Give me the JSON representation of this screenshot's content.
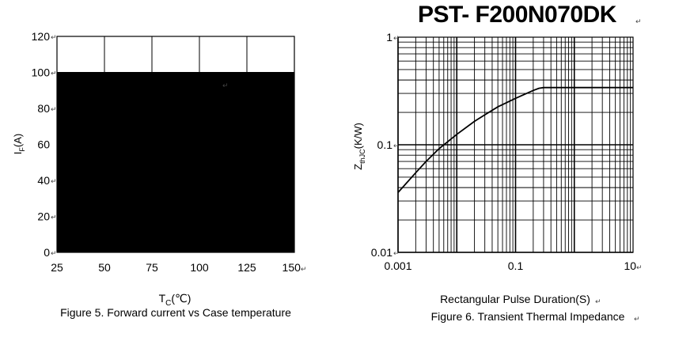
{
  "document": {
    "title": "PST- F200N070DK",
    "paragraph_mark": "↵"
  },
  "chart_data": [
    {
      "type": "area",
      "caption": "Figure 5. Forward current vs Case temperature",
      "xlabel": "T",
      "xlabel_sub": "C",
      "xlabel_unit": "(℃)",
      "ylabel": "I",
      "ylabel_sub": "F",
      "ylabel_unit": "(A)",
      "xlim": [
        25,
        150
      ],
      "ylim": [
        0,
        120
      ],
      "x_ticks": [
        "25",
        "50",
        "75",
        "100",
        "125",
        "150"
      ],
      "y_ticks": [
        "0",
        "20",
        "40",
        "60",
        "80",
        "100",
        "120"
      ],
      "grid": true,
      "series": [
        {
          "x": [
            25,
            150
          ],
          "y": [
            100,
            100
          ],
          "fill": "#000000"
        }
      ]
    },
    {
      "type": "line",
      "caption": "Figure 6. Transient Thermal Impedance",
      "xlabel": "Rectangular Pulse Duration(S)",
      "ylabel": "Z",
      "ylabel_sub": "thJC",
      "ylabel_unit": "(K/W)",
      "x_scale": "log",
      "y_scale": "log",
      "xlim": [
        0.001,
        10
      ],
      "ylim": [
        0.01,
        1
      ],
      "x_ticks": [
        "0.001",
        "0.1",
        "10"
      ],
      "y_ticks": [
        "0.01",
        "0.1",
        "1"
      ],
      "grid": true,
      "series": [
        {
          "x": [
            0.001,
            0.002,
            0.003,
            0.005,
            0.01,
            0.02,
            0.03,
            0.05,
            0.1,
            0.2,
            0.25,
            0.3,
            0.5,
            1,
            2,
            5,
            10
          ],
          "y": [
            0.036,
            0.055,
            0.07,
            0.092,
            0.125,
            0.165,
            0.19,
            0.225,
            0.27,
            0.32,
            0.335,
            0.34,
            0.34,
            0.34,
            0.34,
            0.34,
            0.34
          ]
        }
      ]
    }
  ]
}
